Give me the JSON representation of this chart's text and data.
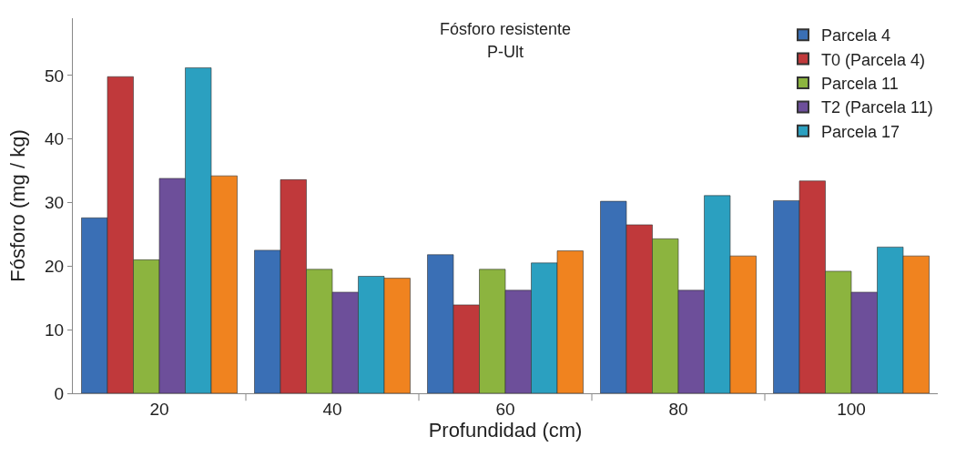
{
  "chart_data": {
    "type": "bar",
    "title": "Fósforo resistente",
    "subtitle": "P-Ult",
    "xlabel": "Profundidad (cm)",
    "ylabel": "Fósforo (mg / kg)",
    "categories": [
      "20",
      "40",
      "60",
      "80",
      "100"
    ],
    "series": [
      {
        "name": "Parcela 4",
        "color": "#3a6fb5",
        "values": [
          27.6,
          22.5,
          21.8,
          30.2,
          30.3
        ]
      },
      {
        "name": "T0 (Parcela 4)",
        "color": "#c0393b",
        "values": [
          49.8,
          33.6,
          13.9,
          26.5,
          33.4
        ]
      },
      {
        "name": "Parcela 11",
        "color": "#8cb43f",
        "values": [
          21.0,
          19.5,
          19.5,
          24.3,
          19.2
        ]
      },
      {
        "name": "T2 (Parcela 11)",
        "color": "#6d4f9a",
        "values": [
          33.8,
          15.9,
          16.2,
          16.2,
          15.9
        ]
      },
      {
        "name": "Parcela 17",
        "color": "#2ba0c0",
        "values": [
          51.2,
          18.4,
          20.5,
          31.1,
          23.0
        ]
      },
      {
        "color": "#f0831f",
        "values": [
          34.2,
          18.1,
          22.4,
          21.6,
          21.6
        ]
      }
    ],
    "ylim": [
      0,
      59
    ],
    "yticks": [
      0,
      10,
      20,
      30,
      40,
      50
    ],
    "legend": "top right"
  }
}
